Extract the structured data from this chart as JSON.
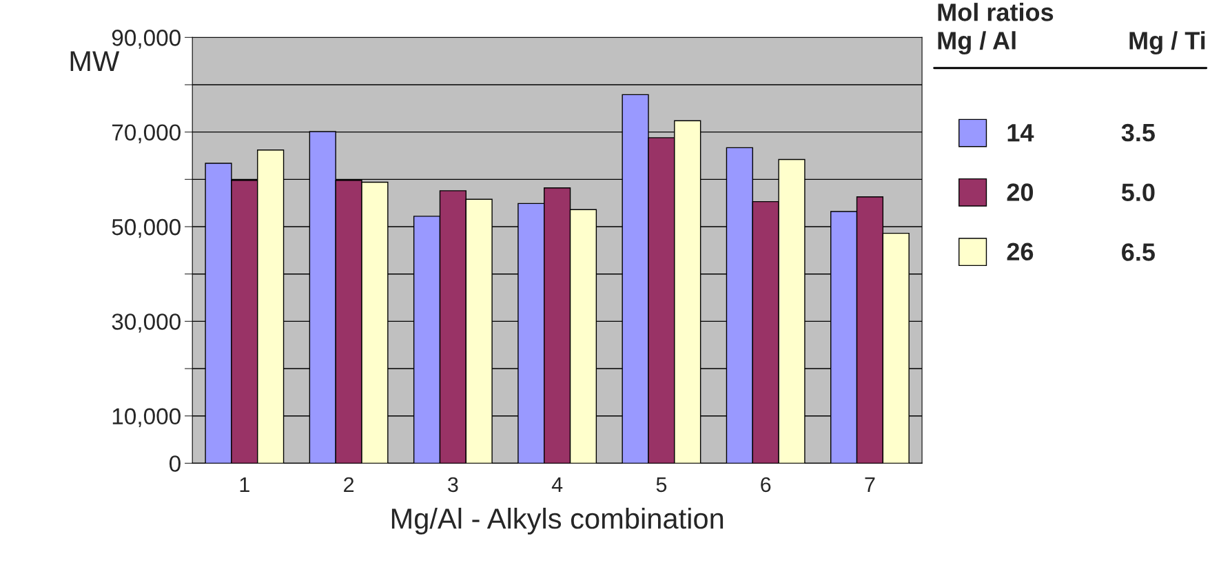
{
  "chart_data": {
    "type": "bar",
    "xlabel": "Mg/Al - Alkyls combination",
    "ylabel": "MW",
    "legend_title": "Mol ratios",
    "categories": [
      "1",
      "2",
      "3",
      "4",
      "5",
      "6",
      "7"
    ],
    "series": [
      {
        "name": "14",
        "color": "#9999ff",
        "values": [
          63400,
          70100,
          52200,
          54900,
          77900,
          66700,
          53200
        ]
      },
      {
        "name": "20",
        "color": "#993366",
        "values": [
          59800,
          59800,
          57600,
          58200,
          68800,
          55300,
          56300
        ]
      },
      {
        "name": "26",
        "color": "#ffffcc",
        "values": [
          66200,
          59400,
          55800,
          53600,
          72400,
          64200,
          48600
        ]
      }
    ],
    "ylim": [
      0,
      90000
    ],
    "yticks": [
      0,
      {
        "value": 10000,
        "label": "10,000"
      },
      {
        "value": 20000,
        "label": null
      },
      {
        "value": 30000,
        "label": "30,000"
      },
      {
        "value": 40000,
        "label": null
      },
      {
        "value": 50000,
        "label": "50,000"
      },
      {
        "value": 60000,
        "label": null
      },
      {
        "value": 70000,
        "label": "70,000"
      },
      {
        "value": 80000,
        "label": null
      },
      {
        "value": 90000,
        "label": "90,000"
      }
    ],
    "grid": "y",
    "legend": "right",
    "annotations": [
      "Mg / Al",
      "Mg / Ti",
      "3.5",
      "5.0",
      "6.5"
    ]
  }
}
